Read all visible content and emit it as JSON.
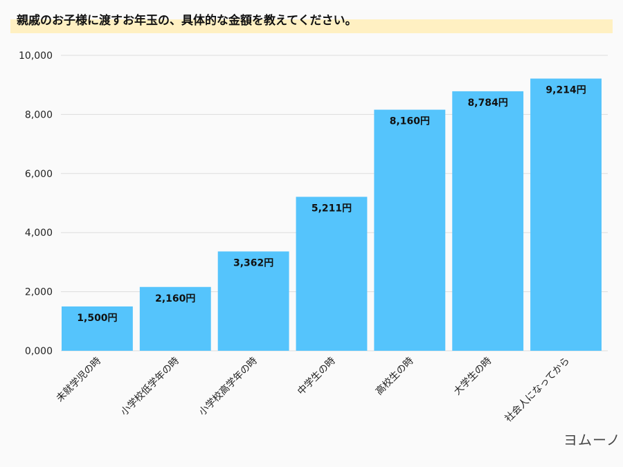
{
  "chart_data": {
    "type": "bar",
    "title": "親戚のお子様に渡すお年玉の、具体的な金額を教えてください。",
    "categories": [
      "未就学児の時",
      "小学校低学年の時",
      "小学校高学年の時",
      "中学生の時",
      "高校生の時",
      "大学生の時",
      "社会人になってから"
    ],
    "values": [
      1500,
      2160,
      3362,
      5211,
      8160,
      8784,
      9214
    ],
    "data_labels": [
      "1,500円",
      "2,160円",
      "3,362円",
      "5,211円",
      "8,160円",
      "8,784円",
      "9,214円"
    ],
    "yticks": [
      "0,000",
      "2,000",
      "4,000",
      "6,000",
      "8,000",
      "10,000"
    ],
    "ylim": [
      0,
      10000
    ],
    "grid": true,
    "bar_color": "#55c4fc"
  },
  "logo": "ヨムーノ"
}
